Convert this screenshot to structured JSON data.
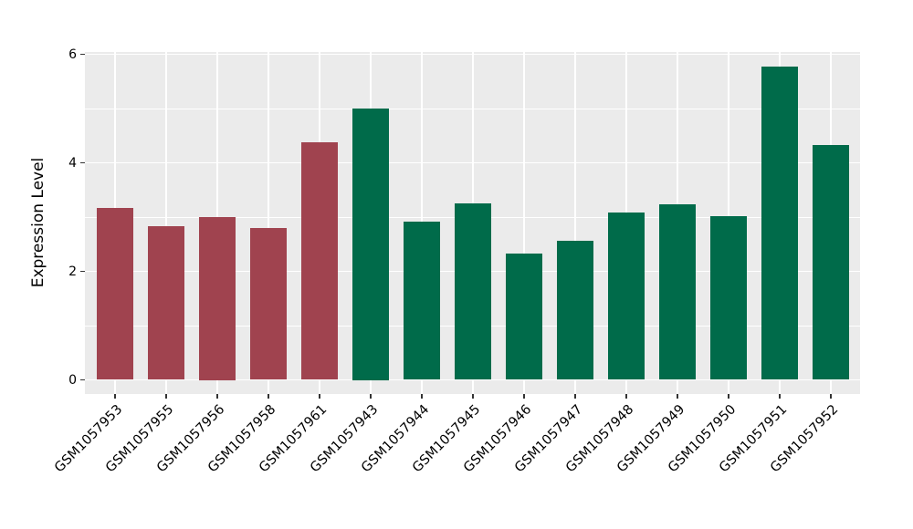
{
  "chart_data": {
    "type": "bar",
    "title": "",
    "xlabel": "",
    "ylabel": "Expression Level",
    "categories": [
      "GSM1057953",
      "GSM1057955",
      "GSM1057956",
      "GSM1057958",
      "GSM1057961",
      "GSM1057943",
      "GSM1057944",
      "GSM1057945",
      "GSM1057946",
      "GSM1057947",
      "GSM1057948",
      "GSM1057949",
      "GSM1057950",
      "GSM1057951",
      "GSM1057952"
    ],
    "values": [
      3.17,
      2.83,
      3.0,
      2.79,
      4.37,
      5.0,
      2.91,
      3.26,
      2.32,
      2.57,
      3.09,
      3.23,
      3.02,
      5.77,
      4.32
    ],
    "groups": [
      "red",
      "red",
      "red",
      "red",
      "red",
      "green",
      "green",
      "green",
      "green",
      "green",
      "green",
      "green",
      "green",
      "green",
      "green"
    ],
    "group_colors": {
      "red": "#A0434F",
      "green": "#006B4A"
    },
    "ylim": [
      0,
      6
    ],
    "yticks": [
      0,
      2,
      4,
      6
    ],
    "yticks_minor": [
      1,
      3,
      5
    ],
    "grid": true,
    "legend": "none",
    "panel_bg": "#EBEBEB",
    "grid_color": "#FFFFFF",
    "figure_bg": "#FFFFFF",
    "text_color": "#000000"
  }
}
